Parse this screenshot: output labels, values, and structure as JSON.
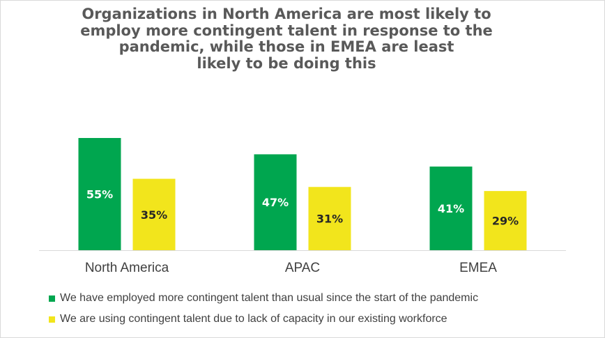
{
  "chart_data": {
    "type": "bar",
    "title": "Organizations in North America are most likely to employ more contingent talent in response to the pandemic, while those in EMEA are least likely to be doing this",
    "title_lines": [
      "Organizations in North America are most likely to",
      "employ more contingent talent in response to the",
      "pandemic, while those in EMEA are least",
      "likely to be doing this"
    ],
    "categories": [
      "North America",
      "APAC",
      "EMEA"
    ],
    "series": [
      {
        "name": "We have employed more contingent talent than usual since the start of the pandemic",
        "color": "#00a64f",
        "label_color": "#ffffff",
        "values": [
          55,
          47,
          41
        ],
        "labels": [
          "55%",
          "47%",
          "41%"
        ]
      },
      {
        "name": "We are using contingent talent due to lack of capacity in our existing workforce",
        "color": "#f2e51c",
        "label_color": "#262626",
        "values": [
          35,
          31,
          29
        ],
        "labels": [
          "35%",
          "31%",
          "29%"
        ]
      }
    ],
    "ylim": [
      0,
      60
    ],
    "unit": "%",
    "grid": false,
    "legend_position": "bottom"
  }
}
